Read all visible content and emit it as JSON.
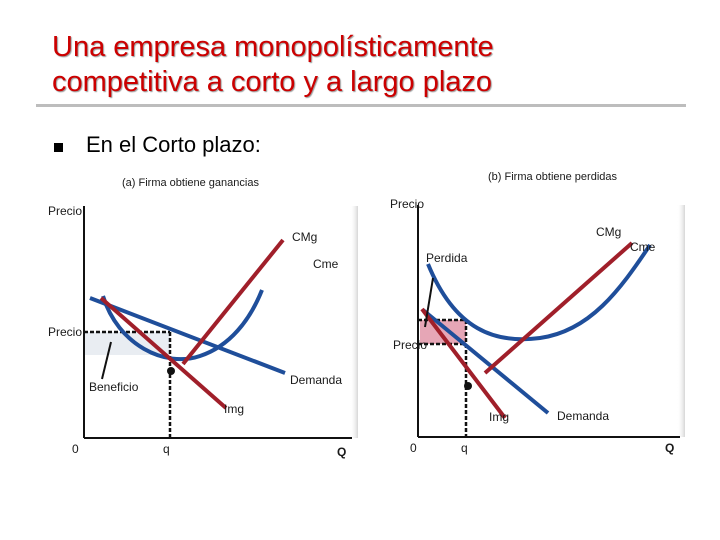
{
  "slide": {
    "title_line1": "Una empresa monopolísticamente",
    "title_line2": "competitiva a corto y a largo plazo",
    "bullet": "En el Corto plazo:"
  },
  "panel_a": {
    "caption": "(a) Firma obtiene  ganancias",
    "y_axis": "Precio",
    "price_label": "Precio",
    "cmg": "CMg",
    "cme": "Cme",
    "demand": "Demanda",
    "img": "Img",
    "beneficio": "Beneficio",
    "origin": "0",
    "q": "q",
    "Q": "Q"
  },
  "panel_b": {
    "caption": "(b) Firma obtiene perdidas",
    "y_axis": "Precio",
    "price_label": "Precio",
    "cmg": "CMg",
    "cme": "Cme",
    "perdida": "Perdida",
    "demand": "Demanda",
    "img": "Img",
    "origin": "0",
    "q": "q",
    "Q": "Q"
  },
  "colors": {
    "title": "#cc0000",
    "curve_blue": "#1f4e9a",
    "curve_red": "#a01f2a",
    "profit_fill": "#e9edf2",
    "loss_fill": "#e6a6b6"
  }
}
